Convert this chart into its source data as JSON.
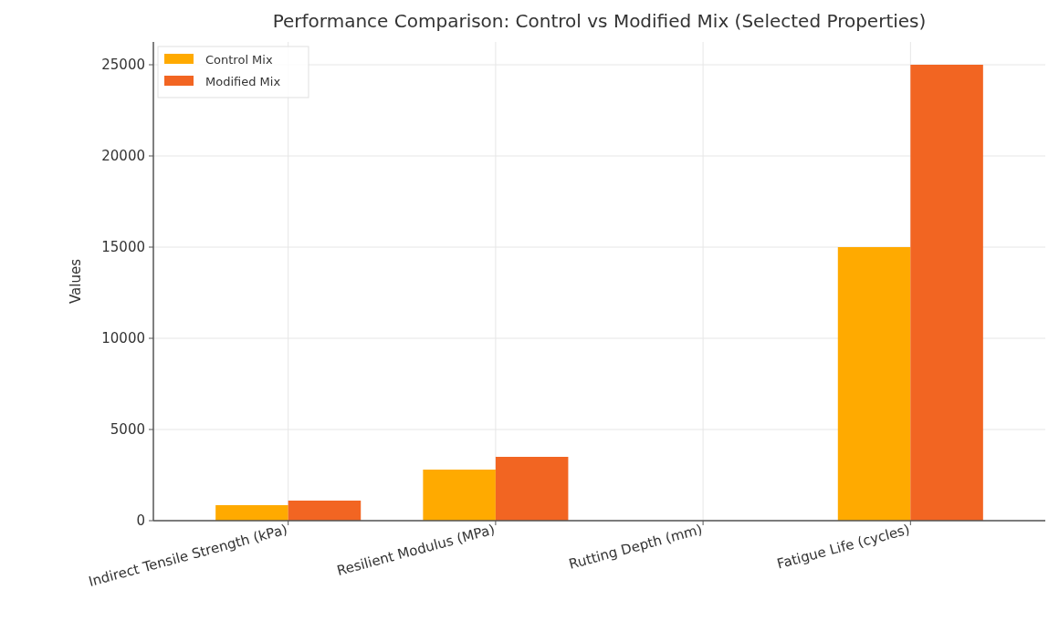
{
  "chart_data": {
    "type": "bar",
    "title": "Performance Comparison: Control vs Modified Mix (Selected Properties)",
    "ylabel": "Values",
    "categories": [
      "Indirect Tensile Strength (kPa)",
      "Resilient Modulus (MPa)",
      "Rutting Depth (mm)",
      "Fatigue Life (cycles)"
    ],
    "series": [
      {
        "name": "Control Mix",
        "color": "#ffaa00",
        "values": [
          850,
          2800,
          0,
          15000
        ]
      },
      {
        "name": "Modified Mix",
        "color": "#f26522",
        "values": [
          1100,
          3500,
          0,
          25000
        ]
      }
    ],
    "ylim": [
      0,
      26250
    ],
    "yticks": [
      0,
      5000,
      10000,
      15000,
      20000,
      25000
    ],
    "grid": true,
    "legend": "top left"
  }
}
